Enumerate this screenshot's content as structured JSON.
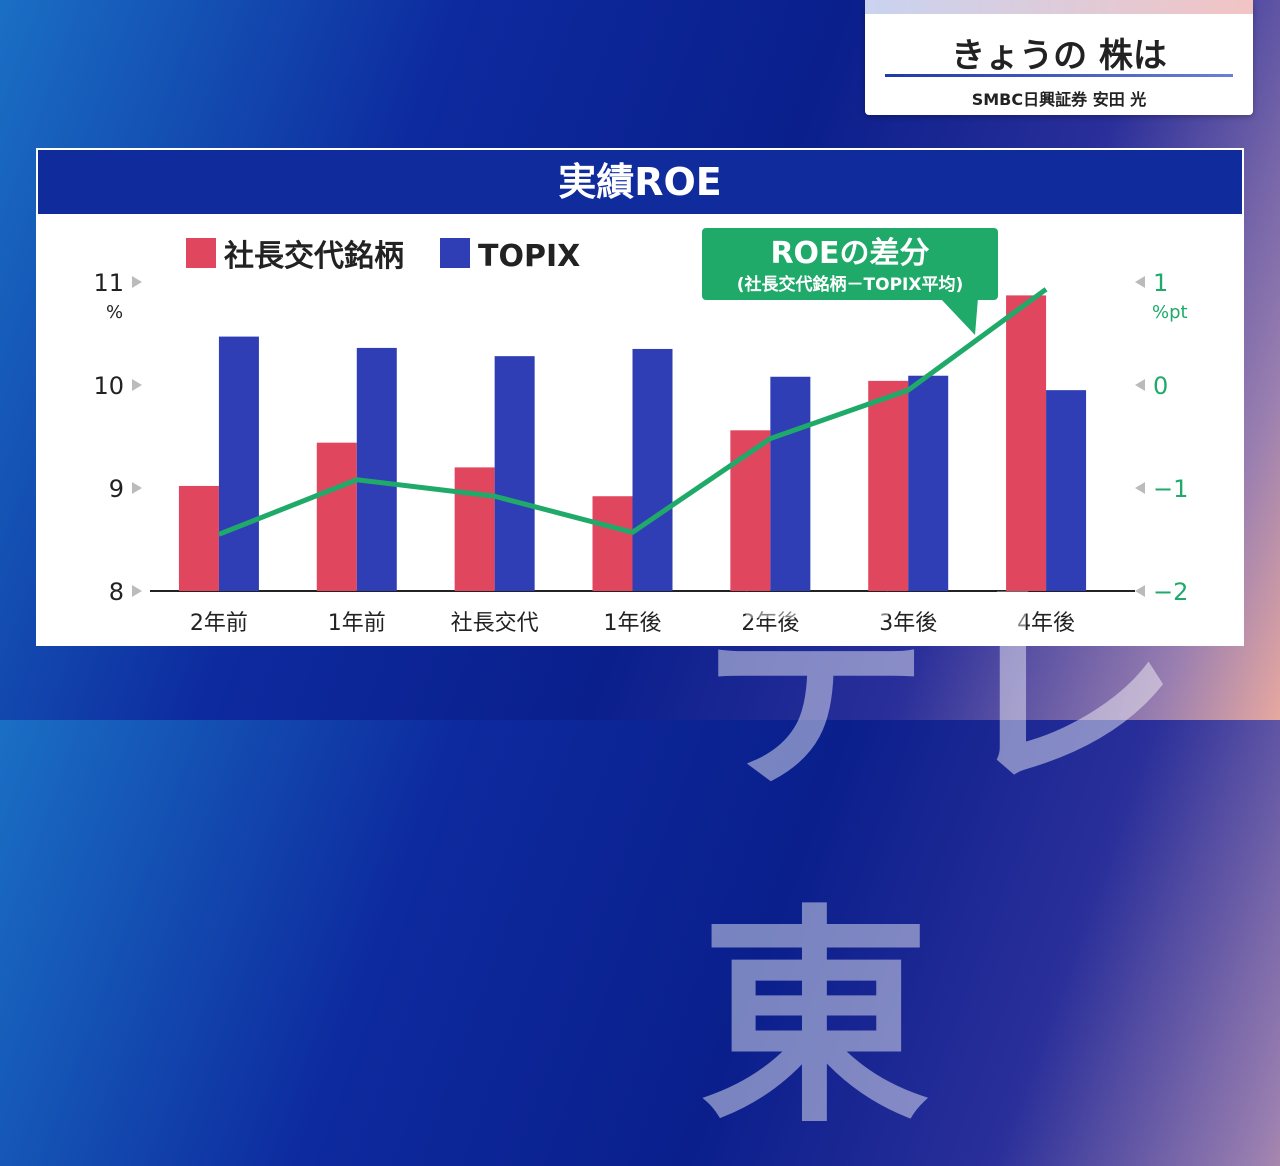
{
  "header": {
    "title": "きょうの 株は",
    "subtitle": "SMBC日興証券 安田 光"
  },
  "watermark": "テレ東",
  "chart_data": {
    "type": "bar",
    "title": "実績ROE",
    "categories": [
      "2年前",
      "1年前",
      "社長交代",
      "1年後",
      "2年後",
      "3年後",
      "4年後"
    ],
    "series": [
      {
        "name": "社長交代銘柄",
        "color": "#e0465e",
        "values": [
          9.02,
          9.44,
          9.2,
          8.92,
          9.56,
          10.04,
          10.87
        ]
      },
      {
        "name": "TOPIX",
        "color": "#2f3eb4",
        "values": [
          10.47,
          10.36,
          10.28,
          10.35,
          10.08,
          10.09,
          9.95
        ]
      }
    ],
    "line_series": {
      "name": "ROEの差分",
      "subtitle": "(社長交代銘柄－TOPIX平均)",
      "color": "#1faa6a",
      "values": [
        -1.45,
        -0.92,
        -1.08,
        -1.43,
        -0.52,
        -0.05,
        0.93
      ]
    },
    "y_left": {
      "unit": "%",
      "min": 8,
      "max": 11,
      "ticks": [
        "8",
        "9",
        "10",
        "11"
      ]
    },
    "y_right": {
      "unit": "%pt",
      "min": -2,
      "max": 1,
      "ticks": [
        "−2",
        "−1",
        "0",
        "1"
      ]
    },
    "legend_position": "top-left"
  }
}
